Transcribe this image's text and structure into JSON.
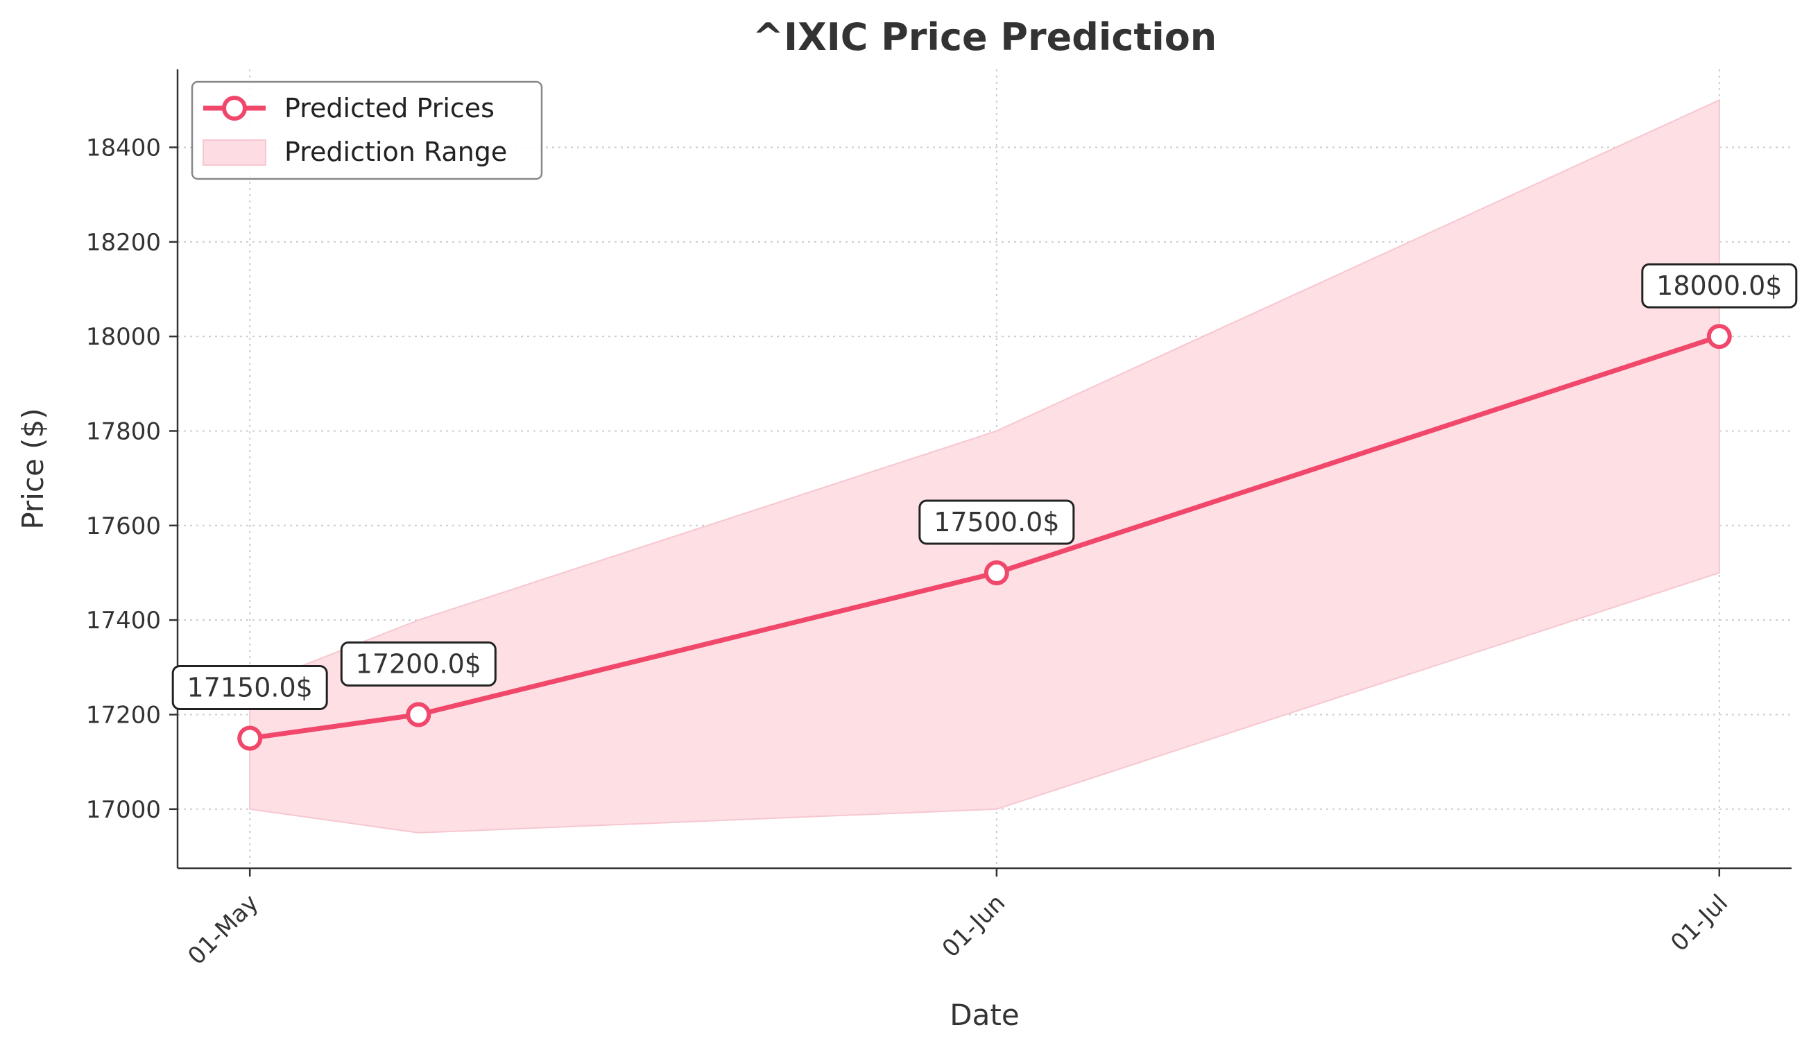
{
  "chart_data": {
    "type": "line",
    "title": "^IXIC Price Prediction",
    "xlabel": "Date",
    "ylabel": "Price ($)",
    "x_tick_labels": [
      "01-May",
      "01-Jun",
      "01-Jul"
    ],
    "x_tick_days": [
      0,
      31,
      61
    ],
    "ylim": [
      16875,
      18565
    ],
    "y_ticks": [
      17000,
      17200,
      17400,
      17600,
      17800,
      18000,
      18200,
      18400
    ],
    "grid": true,
    "legend_position": "top-left",
    "legend": [
      "Predicted Prices",
      "Prediction Range"
    ],
    "series": [
      {
        "name": "Predicted Prices",
        "x": [
          "2024-05-01",
          "2024-05-08",
          "2024-06-01",
          "2024-07-01"
        ],
        "x_days": [
          0,
          7,
          31,
          61
        ],
        "values": [
          17150.0,
          17200.0,
          17500.0,
          18000.0
        ],
        "labels": [
          "17150.0$",
          "17200.0$",
          "17500.0$",
          "18000.0$"
        ],
        "color": "#f0476a"
      }
    ],
    "range": {
      "name": "Prediction Range",
      "x_days": [
        0,
        7,
        31,
        61
      ],
      "lower": [
        17000,
        16950,
        17000,
        17500
      ],
      "upper": [
        17260,
        17400,
        17800,
        18500
      ],
      "color": "#fddde3"
    },
    "xlim_days": [
      -3,
      64
    ]
  }
}
